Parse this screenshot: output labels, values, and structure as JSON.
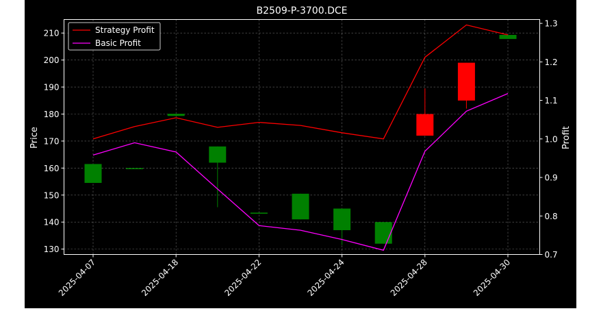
{
  "chart_data": {
    "type": "candlestick",
    "title": "B2509-P-3700.DCE",
    "xlabel": "",
    "ylabel": "Price",
    "y2label": "Profit",
    "ylim": [
      128,
      215
    ],
    "y2lim": [
      0.7,
      1.31
    ],
    "yticks": [
      130,
      140,
      150,
      160,
      170,
      180,
      190,
      200,
      210
    ],
    "y2ticks": [
      "0.7",
      "0.8",
      "0.9",
      "1.0",
      "1.1",
      "1.2",
      "1.3"
    ],
    "categories": [
      "2025-04-07",
      "",
      "2025-04-18",
      "",
      "2025-04-22",
      "",
      "2025-04-24",
      "",
      "2025-04-28",
      "",
      "2025-04-30"
    ],
    "xtick_labels": [
      "2025-04-07",
      "2025-04-18",
      "2025-04-22",
      "2025-04-24",
      "2025-04-28",
      "2025-04-30"
    ],
    "grid": true,
    "legend_position": "top-left",
    "candles": [
      {
        "open": 154.5,
        "high": 161.5,
        "low": 154.5,
        "close": 161.5
      },
      {
        "open": 160.0,
        "high": 160.0,
        "low": 160.0,
        "close": 160.0
      },
      {
        "open": 179.3,
        "high": 180.1,
        "low": 179.3,
        "close": 180.1
      },
      {
        "open": 162.0,
        "high": 168.0,
        "low": 145.5,
        "close": 168.0
      },
      {
        "open": 143.5,
        "high": 143.5,
        "low": 143.5,
        "close": 143.5
      },
      {
        "open": 141.0,
        "high": 150.5,
        "low": 141.0,
        "close": 150.5
      },
      {
        "open": 137.0,
        "high": 145.0,
        "low": 131.5,
        "close": 145.0
      },
      {
        "open": 132.0,
        "high": 140.0,
        "low": 132.0,
        "close": 140.0
      },
      {
        "open": 180.0,
        "high": 189.5,
        "low": 172.0,
        "close": 172.0
      },
      {
        "open": 199.0,
        "high": 199.0,
        "low": 182.0,
        "close": 185.0
      },
      {
        "open": 207.8,
        "high": 209.3,
        "low": 207.8,
        "close": 209.3
      }
    ],
    "series": [
      {
        "name": "Strategy Profit",
        "color": "#ff0000",
        "values": [
          1.0,
          1.032,
          1.055,
          1.03,
          1.043,
          1.035,
          1.016,
          1.0,
          1.212,
          1.296,
          1.27
        ]
      },
      {
        "name": "Basic Profit",
        "color": "#ff00ff",
        "values": [
          0.958,
          0.99,
          0.966,
          0.87,
          0.775,
          0.763,
          0.739,
          0.711,
          0.968,
          1.072,
          1.118
        ]
      }
    ],
    "up_color": "#008000",
    "down_color": "#ff0000"
  }
}
